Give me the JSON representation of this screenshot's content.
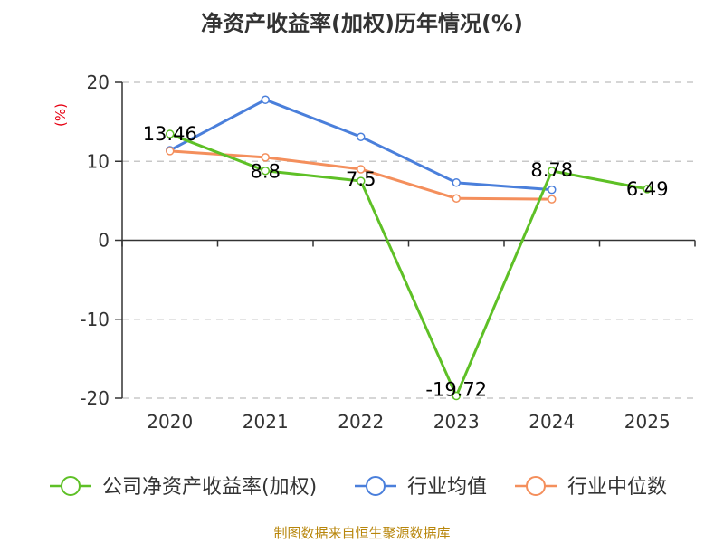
{
  "chart_data": {
    "type": "line",
    "title": "净资产收益率(加权)历年情况(%)",
    "ylabel": "(%)",
    "xlabel": "",
    "categories": [
      "2020",
      "2021",
      "2022",
      "2023",
      "2024",
      "2025"
    ],
    "ylim": [
      -20,
      20
    ],
    "yticks": [
      20,
      10,
      0,
      -10,
      -20
    ],
    "grid": true,
    "legend_position": "bottom",
    "series": [
      {
        "name": "公司净资产收益率(加权)",
        "color": "#5ec026",
        "values": [
          13.46,
          8.8,
          7.5,
          -19.72,
          8.78,
          6.49
        ],
        "labels": [
          "13.46",
          "8.8",
          "7.5",
          "-19.72",
          "8.78",
          "6.49"
        ]
      },
      {
        "name": "行业均值",
        "color": "#4a7fdb",
        "values": [
          11.4,
          17.8,
          13.1,
          7.3,
          6.4,
          null
        ]
      },
      {
        "name": "行业中位数",
        "color": "#f48f5c",
        "values": [
          11.3,
          10.5,
          9.0,
          5.3,
          5.2,
          null
        ]
      }
    ],
    "source": "制图数据来自恒生聚源数据库"
  }
}
